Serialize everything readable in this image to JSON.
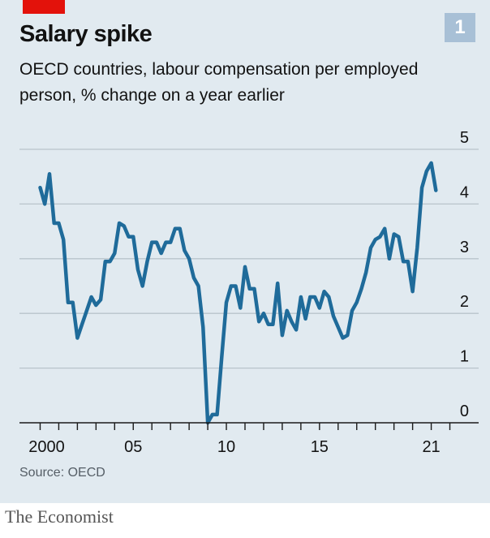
{
  "header": {
    "badge": "1",
    "title": "Salary spike",
    "subtitle": "OECD countries, labour compensation per employed person, % change on a year earlier"
  },
  "footer": {
    "source": "Source: OECD",
    "brand": "The Economist"
  },
  "colors": {
    "background": "#e1eaf0",
    "accent": "#e3120b",
    "badge": "#a8c0d6",
    "line": "#1f6b9a",
    "grid": "#b9c4cb"
  },
  "chart_data": {
    "type": "line",
    "title": "Salary spike",
    "subtitle": "OECD countries, labour compensation per employed person, % change on a year earlier",
    "xlabel": "",
    "ylabel": "",
    "xlim": [
      1999.5,
      2022.5
    ],
    "ylim": [
      0,
      5
    ],
    "grid": true,
    "y_axis_side": "right",
    "x_ticks": [
      2000,
      2005,
      2010,
      2015,
      2021
    ],
    "x_tick_labels": [
      "2000",
      "05",
      "10",
      "15",
      "21"
    ],
    "y_ticks": [
      0,
      1,
      2,
      3,
      4,
      5
    ],
    "y_tick_labels": [
      "0",
      "1",
      "2",
      "3",
      "4",
      "5"
    ],
    "series": [
      {
        "name": "Labour compensation per employed person",
        "x": [
          2000.0,
          2000.25,
          2000.5,
          2000.75,
          2001.0,
          2001.25,
          2001.5,
          2001.75,
          2002.0,
          2002.25,
          2002.5,
          2002.75,
          2003.0,
          2003.25,
          2003.5,
          2003.75,
          2004.0,
          2004.25,
          2004.5,
          2004.75,
          2005.0,
          2005.25,
          2005.5,
          2005.75,
          2006.0,
          2006.25,
          2006.5,
          2006.75,
          2007.0,
          2007.25,
          2007.5,
          2007.75,
          2008.0,
          2008.25,
          2008.5,
          2008.75,
          2009.0,
          2009.25,
          2009.5,
          2009.75,
          2010.0,
          2010.25,
          2010.5,
          2010.75,
          2011.0,
          2011.25,
          2011.5,
          2011.75,
          2012.0,
          2012.25,
          2012.5,
          2012.75,
          2013.0,
          2013.25,
          2013.5,
          2013.75,
          2014.0,
          2014.25,
          2014.5,
          2014.75,
          2015.0,
          2015.25,
          2015.5,
          2015.75,
          2016.0,
          2016.25,
          2016.5,
          2016.75,
          2017.0,
          2017.25,
          2017.5,
          2017.75,
          2018.0,
          2018.25,
          2018.5,
          2018.75,
          2019.0,
          2019.25,
          2019.5,
          2019.75,
          2020.0,
          2020.25,
          2020.5,
          2020.75,
          2021.0,
          2021.25
        ],
        "values": [
          4.3,
          4.0,
          4.55,
          3.65,
          3.65,
          3.35,
          2.2,
          2.2,
          1.55,
          1.8,
          2.05,
          2.3,
          2.15,
          2.25,
          2.95,
          2.95,
          3.1,
          3.65,
          3.6,
          3.4,
          3.4,
          2.8,
          2.5,
          2.95,
          3.3,
          3.3,
          3.1,
          3.3,
          3.3,
          3.55,
          3.55,
          3.15,
          3.0,
          2.65,
          2.5,
          1.75,
          0.0,
          0.15,
          0.15,
          1.2,
          2.2,
          2.5,
          2.5,
          2.1,
          2.85,
          2.45,
          2.45,
          1.85,
          2.0,
          1.8,
          1.8,
          2.55,
          1.6,
          2.05,
          1.85,
          1.7,
          2.3,
          1.9,
          2.3,
          2.3,
          2.1,
          2.4,
          2.3,
          1.95,
          1.75,
          1.55,
          1.6,
          2.05,
          2.2,
          2.45,
          2.75,
          3.2,
          3.35,
          3.4,
          3.55,
          3.0,
          3.45,
          3.4,
          2.95,
          2.95,
          2.4,
          3.2,
          4.3,
          4.6,
          4.75,
          4.25
        ]
      }
    ]
  }
}
